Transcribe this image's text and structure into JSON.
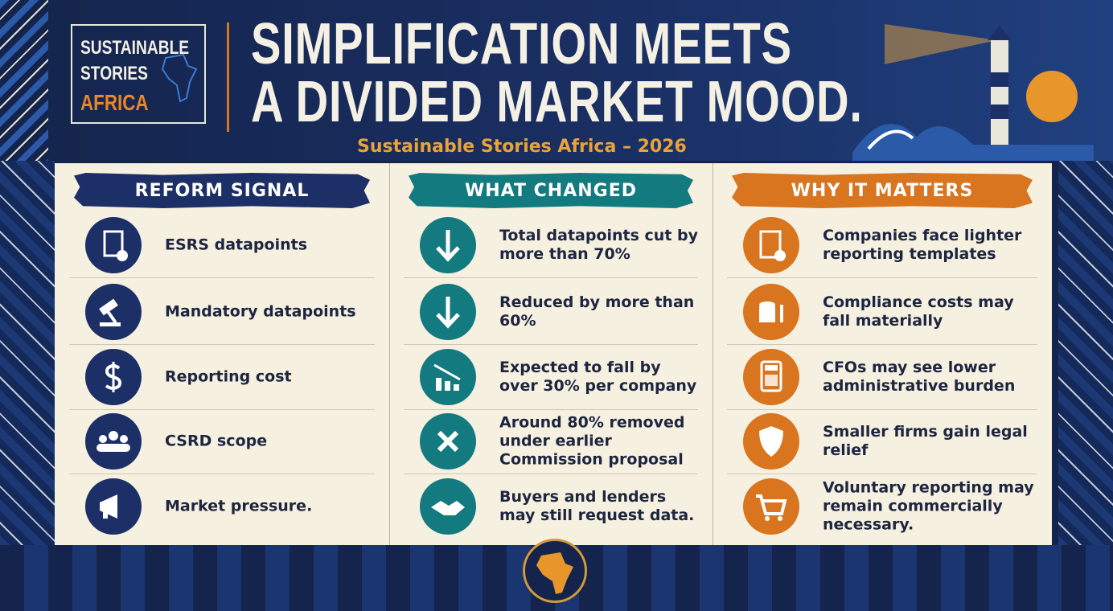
{
  "header": {
    "logo": [
      "SUSTAINABLE",
      "STORIES",
      "AFRICA"
    ],
    "title": [
      "SIMPLIFICATION MEETS",
      "A DIVIDED MARKET MOOD."
    ],
    "subtitle": "Sustainable Stories Africa – 2026"
  },
  "table": {
    "columns": [
      "REFORM SIGNAL",
      "WHAT CHANGED",
      "WHY IT MATTERS"
    ],
    "rows": [
      [
        "ESRS datapoints",
        "Total datapoints cut by more than 70%",
        "Companies face lighter reporting templates"
      ],
      [
        "Mandatory datapoints",
        "Reduced by more than 60%",
        "Compliance costs may fall materially"
      ],
      [
        "Reporting cost",
        "Expected to fall by over 30% per company",
        "CFOs may see lower administrative burden"
      ],
      [
        "CSRD scope",
        "Around 80% removed under earlier Commission proposal",
        "Smaller firms gain legal relief"
      ],
      [
        "Market pressure.",
        "Buyers and lenders may still request data.",
        "Voluntary reporting may remain commercially necessary."
      ]
    ]
  }
}
